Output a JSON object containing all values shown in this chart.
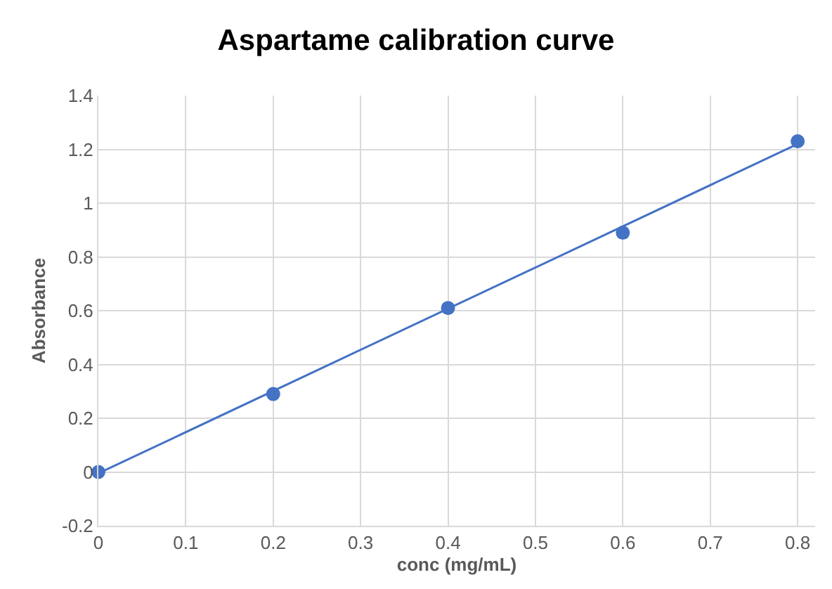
{
  "chart_data": {
    "type": "scatter",
    "title": "Aspartame calibration curve",
    "xlabel": "conc (mg/mL)",
    "ylabel": "Absorbance",
    "x": [
      0,
      0.2,
      0.4,
      0.6,
      0.8
    ],
    "series": [
      {
        "color": "#4472c4",
        "marker": "circle",
        "values": [
          0,
          0.29,
          0.61,
          0.89,
          1.23
        ]
      },
      {
        "type": "line",
        "color": "#4472c4",
        "x": [
          0,
          0.8
        ],
        "values": [
          -0.005,
          1.22
        ],
        "marker": "none",
        "line_style": "solid"
      }
    ],
    "xlim": [
      0,
      0.82
    ],
    "xticks": [
      0,
      0.1,
      0.2,
      0.3,
      0.4,
      0.5,
      0.6,
      0.7,
      0.8
    ],
    "ylim": [
      -0.2,
      1.4
    ],
    "yticks": [
      -0.2,
      0,
      0.2,
      0.4,
      0.6,
      0.8,
      1,
      1.2,
      1.4
    ],
    "grid": true,
    "legend": false
  }
}
